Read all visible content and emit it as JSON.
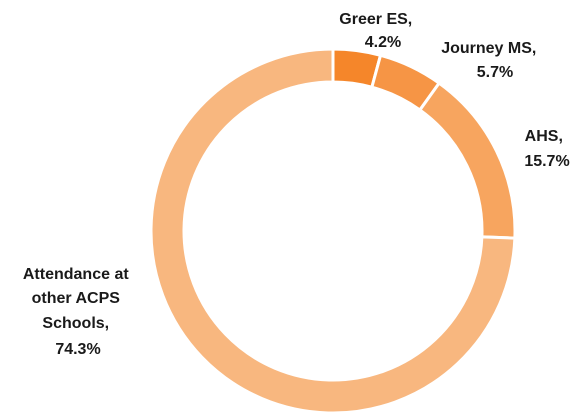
{
  "chart_data": {
    "type": "pie",
    "title": "",
    "slices": [
      {
        "label": "Greer ES,",
        "value": 4.2,
        "value_label": "4.2%",
        "color": "#F5862A"
      },
      {
        "label": "Journey MS,",
        "value": 5.7,
        "value_label": "5.7%",
        "color": "#F69545"
      },
      {
        "label": "AHS,",
        "value": 15.7,
        "value_label": "15.7%",
        "color": "#F7A55F"
      },
      {
        "label": "Attendance at other ACPS Schools,",
        "value": 74.3,
        "value_label": "74.3%",
        "color": "#F8B77F"
      }
    ]
  }
}
